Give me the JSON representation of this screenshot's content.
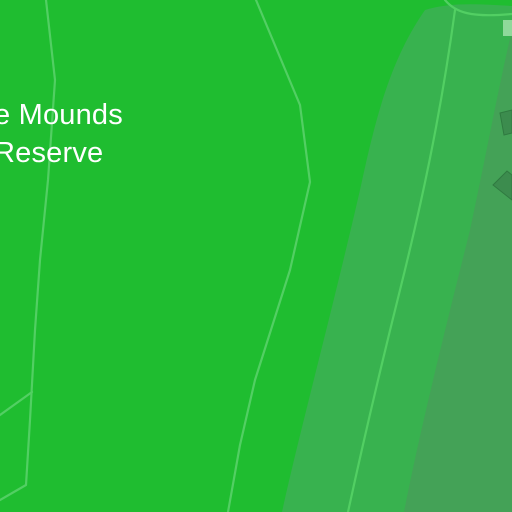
{
  "map": {
    "area_label": {
      "line1": "e Mounds",
      "line2": "Reserve"
    },
    "colors": {
      "park": "#1fbd30",
      "slope_light": "#38b24f",
      "slope_dark": "#44a257",
      "building": "#3c8c4e",
      "trail": "#52cf63",
      "label_text": "#ffffff"
    }
  }
}
